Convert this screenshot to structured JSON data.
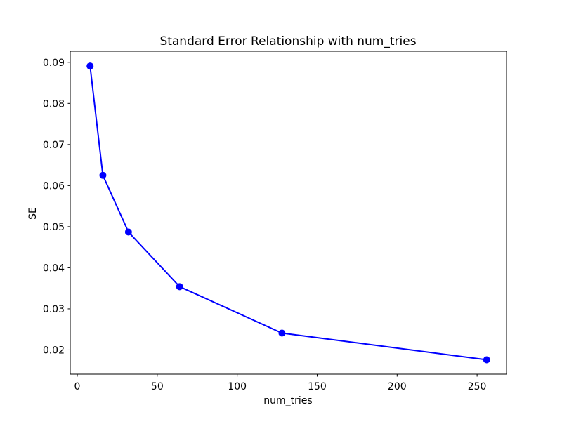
{
  "chart_data": {
    "type": "line",
    "title": "Standard Error Relationship with num_tries",
    "xlabel": "num_tries",
    "ylabel": "SE",
    "x": [
      8,
      16,
      32,
      64,
      128,
      256
    ],
    "y": [
      0.0891,
      0.0625,
      0.0487,
      0.0354,
      0.0241,
      0.0176
    ],
    "xticks": [
      0,
      50,
      100,
      150,
      200,
      250
    ],
    "xtick_labels": [
      "0",
      "50",
      "100",
      "150",
      "200",
      "250"
    ],
    "yticks": [
      0.02,
      0.03,
      0.04,
      0.05,
      0.06,
      0.07,
      0.08,
      0.09
    ],
    "ytick_labels": [
      "0.02",
      "0.03",
      "0.04",
      "0.05",
      "0.06",
      "0.07",
      "0.08",
      "0.09"
    ],
    "xlim": [
      -4.4,
      268.4
    ],
    "ylim": [
      0.0141,
      0.0927
    ],
    "line_color": "#0000ff",
    "marker": "o",
    "marker_size": 5,
    "line_width": 2,
    "grid": false,
    "legend": null,
    "background_color": "#ffffff",
    "spine_color": "#000000"
  }
}
